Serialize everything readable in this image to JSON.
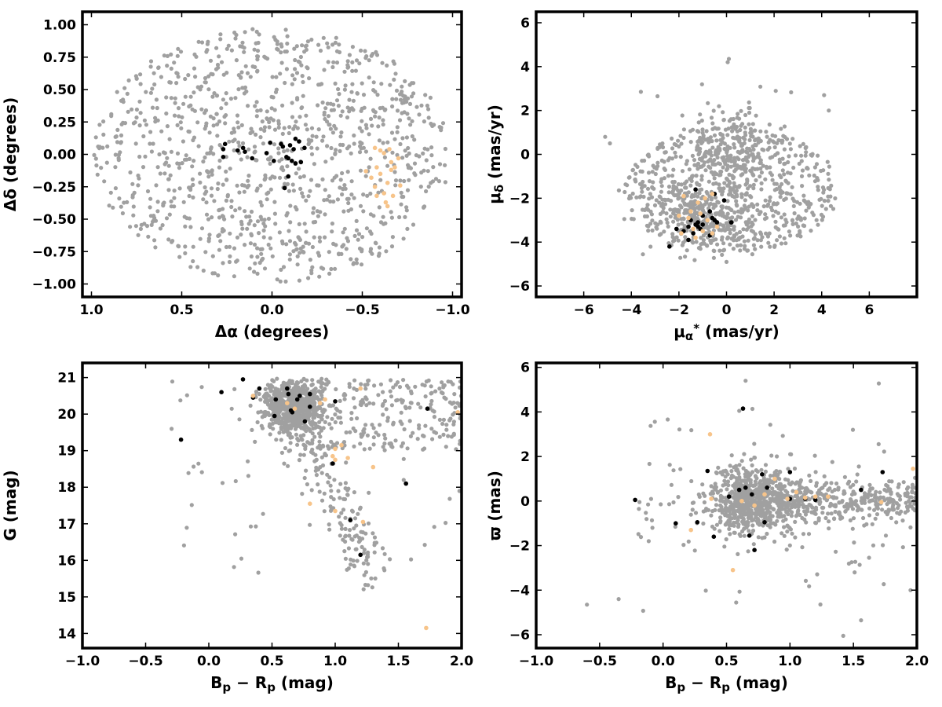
{
  "colors": {
    "field": "#a0a0a0",
    "members": "#000000",
    "group2": "#f7c48a"
  },
  "chart_data": [
    {
      "type": "scatter",
      "panel": "sky-position",
      "xlabel": "Δα (degrees)",
      "ylabel": "Δδ (degrees)",
      "xlim": [
        1.05,
        -1.05
      ],
      "ylim": [
        -1.1,
        1.1
      ],
      "xticks": [
        "1.0",
        "0.5",
        "0.0",
        "−0.5",
        "−1.0"
      ],
      "yticks": [
        "−1.00",
        "−0.75",
        "−0.50",
        "−0.25",
        "0.00",
        "0.25",
        "0.50",
        "0.75",
        "1.00"
      ],
      "grid": false,
      "series": [
        {
          "color": "#a0a0a0",
          "distribution": "uniform disk, radius 1.0 deg",
          "approx_count": 1100
        },
        {
          "color": "#000000",
          "points": [
            [
              0.26,
              0.08
            ],
            [
              0.27,
              0.04
            ],
            [
              0.27,
              -0.02
            ],
            [
              0.19,
              0.03
            ],
            [
              0.16,
              0.05
            ],
            [
              0.15,
              0.02
            ],
            [
              0.11,
              -0.03
            ],
            [
              0.03,
              0.01
            ],
            [
              0.01,
              0.09
            ],
            [
              -0.01,
              -0.05
            ],
            [
              -0.05,
              0.08
            ],
            [
              -0.06,
              0.06
            ],
            [
              -0.08,
              -0.02
            ],
            [
              -0.09,
              -0.03
            ],
            [
              -0.1,
              0.07
            ],
            [
              -0.11,
              -0.05
            ],
            [
              -0.12,
              0.04
            ],
            [
              -0.13,
              -0.07
            ],
            [
              -0.13,
              0.12
            ],
            [
              -0.15,
              0.1
            ],
            [
              -0.09,
              -0.17
            ],
            [
              -0.07,
              -0.26
            ],
            [
              -0.18,
              0.05
            ],
            [
              -0.16,
              -0.06
            ]
          ]
        },
        {
          "color": "#f7c48a",
          "points": [
            [
              -0.57,
              0.05
            ],
            [
              -0.6,
              0.03
            ],
            [
              -0.62,
              0.01
            ],
            [
              -0.65,
              0.04
            ],
            [
              -0.66,
              -0.06
            ],
            [
              -0.58,
              -0.1
            ],
            [
              -0.55,
              -0.18
            ],
            [
              -0.57,
              -0.25
            ],
            [
              -0.62,
              -0.3
            ],
            [
              -0.64,
              -0.22
            ],
            [
              -0.66,
              -0.12
            ],
            [
              -0.68,
              -0.1
            ],
            [
              -0.7,
              -0.03
            ],
            [
              -0.63,
              -0.37
            ],
            [
              -0.58,
              -0.32
            ],
            [
              -0.67,
              -0.32
            ],
            [
              -0.71,
              -0.24
            ],
            [
              -0.6,
              -0.15
            ],
            [
              -0.52,
              -0.13
            ],
            [
              -0.64,
              -0.4
            ]
          ]
        }
      ]
    },
    {
      "type": "scatter",
      "panel": "proper-motion",
      "xlabel": "μα* (mas/yr)",
      "ylabel": "μδ (mas/yr)",
      "xlim": [
        -8,
        8
      ],
      "ylim": [
        -6.5,
        6.5
      ],
      "xticks": [
        "−6",
        "−4",
        "−2",
        "0",
        "2",
        "4",
        "6"
      ],
      "yticks": [
        "−6",
        "−4",
        "−2",
        "0",
        "2",
        "4",
        "6"
      ],
      "grid": false,
      "series": [
        {
          "color": "#a0a0a0",
          "distribution": "elliptical cloud centred near (0,-1.5)",
          "approx_count": 1100
        },
        {
          "color": "#000000",
          "points": [
            [
              -1.3,
              -1.6
            ],
            [
              -0.5,
              -1.8
            ],
            [
              -0.1,
              -2.1
            ],
            [
              -0.7,
              -2.6
            ],
            [
              -1.0,
              -2.8
            ],
            [
              -1.2,
              -3.1
            ],
            [
              -1.3,
              -3.2
            ],
            [
              -1.5,
              -3.0
            ],
            [
              -1.6,
              -3.3
            ],
            [
              -1.1,
              -3.4
            ],
            [
              -0.6,
              -2.9
            ],
            [
              -0.4,
              -3.1
            ],
            [
              0.2,
              -3.1
            ],
            [
              -1.8,
              -3.5
            ],
            [
              -2.1,
              -3.4
            ],
            [
              -1.4,
              -3.6
            ],
            [
              -0.7,
              -3.7
            ],
            [
              -1.6,
              -3.9
            ],
            [
              -2.4,
              -4.2
            ],
            [
              -1.2,
              -3.3
            ],
            [
              -0.5,
              -3.0
            ],
            [
              -1.0,
              -3.2
            ]
          ]
        },
        {
          "color": "#f7c48a",
          "points": [
            [
              -1.8,
              -1.9
            ],
            [
              -0.6,
              -1.8
            ],
            [
              -0.9,
              -2.0
            ],
            [
              -1.2,
              -2.2
            ],
            [
              -1.5,
              -2.6
            ],
            [
              -1.6,
              -2.9
            ],
            [
              -1.1,
              -2.7
            ],
            [
              -0.8,
              -3.0
            ],
            [
              -0.4,
              -3.3
            ],
            [
              -1.4,
              -3.4
            ],
            [
              -1.9,
              -3.6
            ],
            [
              -1.0,
              -3.5
            ],
            [
              -1.3,
              -3.8
            ],
            [
              -0.6,
              -3.6
            ],
            [
              -2.0,
              -2.8
            ]
          ]
        }
      ]
    },
    {
      "type": "scatter",
      "panel": "colour-magnitude",
      "xlabel": "Bp − Rp (mag)",
      "ylabel": "G (mag)",
      "xlim": [
        -1.0,
        2.0
      ],
      "ylim": [
        13.6,
        21.4
      ],
      "y_inverted": false,
      "xticks": [
        "−1.0",
        "−0.5",
        "0.0",
        "0.5",
        "1.0",
        "1.5",
        "2.0"
      ],
      "yticks": [
        "14",
        "15",
        "16",
        "17",
        "18",
        "19",
        "20",
        "21"
      ],
      "grid": false,
      "series": [
        {
          "color": "#a0a0a0",
          "distribution": "dense clump near (0.65, 20.2) with diagonal branch toward (1.3, 15.5)",
          "approx_count": 1100
        },
        {
          "color": "#000000",
          "points": [
            [
              -0.22,
              19.3
            ],
            [
              0.1,
              20.6
            ],
            [
              0.27,
              20.95
            ],
            [
              0.35,
              20.45
            ],
            [
              0.4,
              20.7
            ],
            [
              0.52,
              19.95
            ],
            [
              0.53,
              20.4
            ],
            [
              0.62,
              20.7
            ],
            [
              0.63,
              20.55
            ],
            [
              0.65,
              20.1
            ],
            [
              0.7,
              20.4
            ],
            [
              0.72,
              20.5
            ],
            [
              0.76,
              19.8
            ],
            [
              0.8,
              20.55
            ],
            [
              0.8,
              20.2
            ],
            [
              0.98,
              18.65
            ],
            [
              1.0,
              20.35
            ],
            [
              1.12,
              17.1
            ],
            [
              1.2,
              16.15
            ],
            [
              1.56,
              18.1
            ],
            [
              1.73,
              20.15
            ],
            [
              0.66,
              20.05
            ]
          ]
        },
        {
          "color": "#f7c48a",
          "points": [
            [
              0.35,
              20.5
            ],
            [
              0.62,
              20.3
            ],
            [
              0.68,
              20.15
            ],
            [
              0.88,
              20.3
            ],
            [
              0.92,
              20.4
            ],
            [
              0.98,
              18.85
            ],
            [
              1.0,
              19.05
            ],
            [
              1.0,
              18.75
            ],
            [
              1.05,
              19.15
            ],
            [
              1.1,
              18.8
            ],
            [
              1.2,
              20.7
            ],
            [
              1.3,
              18.55
            ],
            [
              0.8,
              17.55
            ],
            [
              1.22,
              17.05
            ],
            [
              1.72,
              14.15
            ],
            [
              1.97,
              20.05
            ],
            [
              1.0,
              17.35
            ]
          ]
        }
      ]
    },
    {
      "type": "scatter",
      "panel": "parallax",
      "xlabel": "Bp − Rp (mag)",
      "ylabel": "ϖ (mas)",
      "xlim": [
        -1.0,
        2.0
      ],
      "ylim": [
        -6.6,
        6.2
      ],
      "xticks": [
        "−1.0",
        "−0.5",
        "0.0",
        "0.5",
        "1.0",
        "1.5",
        "2.0"
      ],
      "yticks": [
        "−6",
        "−4",
        "−2",
        "0",
        "2",
        "4",
        "6"
      ],
      "grid": false,
      "series": [
        {
          "color": "#a0a0a0",
          "distribution": "horizontal band near parallax 0, densest at colour 0.7",
          "approx_count": 1100
        },
        {
          "color": "#000000",
          "points": [
            [
              -0.22,
              0.05
            ],
            [
              0.1,
              -1.0
            ],
            [
              0.27,
              -0.95
            ],
            [
              0.35,
              1.35
            ],
            [
              0.4,
              -1.6
            ],
            [
              0.52,
              0.2
            ],
            [
              0.6,
              0.5
            ],
            [
              0.63,
              4.15
            ],
            [
              0.65,
              0.6
            ],
            [
              0.68,
              -1.55
            ],
            [
              0.7,
              0.3
            ],
            [
              0.72,
              -2.2
            ],
            [
              0.78,
              1.2
            ],
            [
              0.8,
              -0.95
            ],
            [
              0.82,
              0.6
            ],
            [
              1.0,
              0.1
            ],
            [
              1.0,
              1.3
            ],
            [
              1.12,
              0.1
            ],
            [
              1.2,
              0.05
            ],
            [
              1.56,
              0.5
            ],
            [
              1.73,
              1.3
            ]
          ]
        },
        {
          "color": "#f7c48a",
          "points": [
            [
              0.22,
              -1.3
            ],
            [
              0.37,
              3.0
            ],
            [
              0.38,
              0.1
            ],
            [
              0.55,
              -3.1
            ],
            [
              0.62,
              0.0
            ],
            [
              0.72,
              -0.2
            ],
            [
              0.88,
              1.0
            ],
            [
              0.98,
              0.1
            ],
            [
              1.05,
              0.4
            ],
            [
              1.12,
              0.15
            ],
            [
              1.2,
              0.2
            ],
            [
              1.3,
              0.2
            ],
            [
              1.72,
              -0.05
            ],
            [
              1.97,
              1.45
            ],
            [
              0.8,
              0.3
            ]
          ]
        }
      ]
    }
  ]
}
